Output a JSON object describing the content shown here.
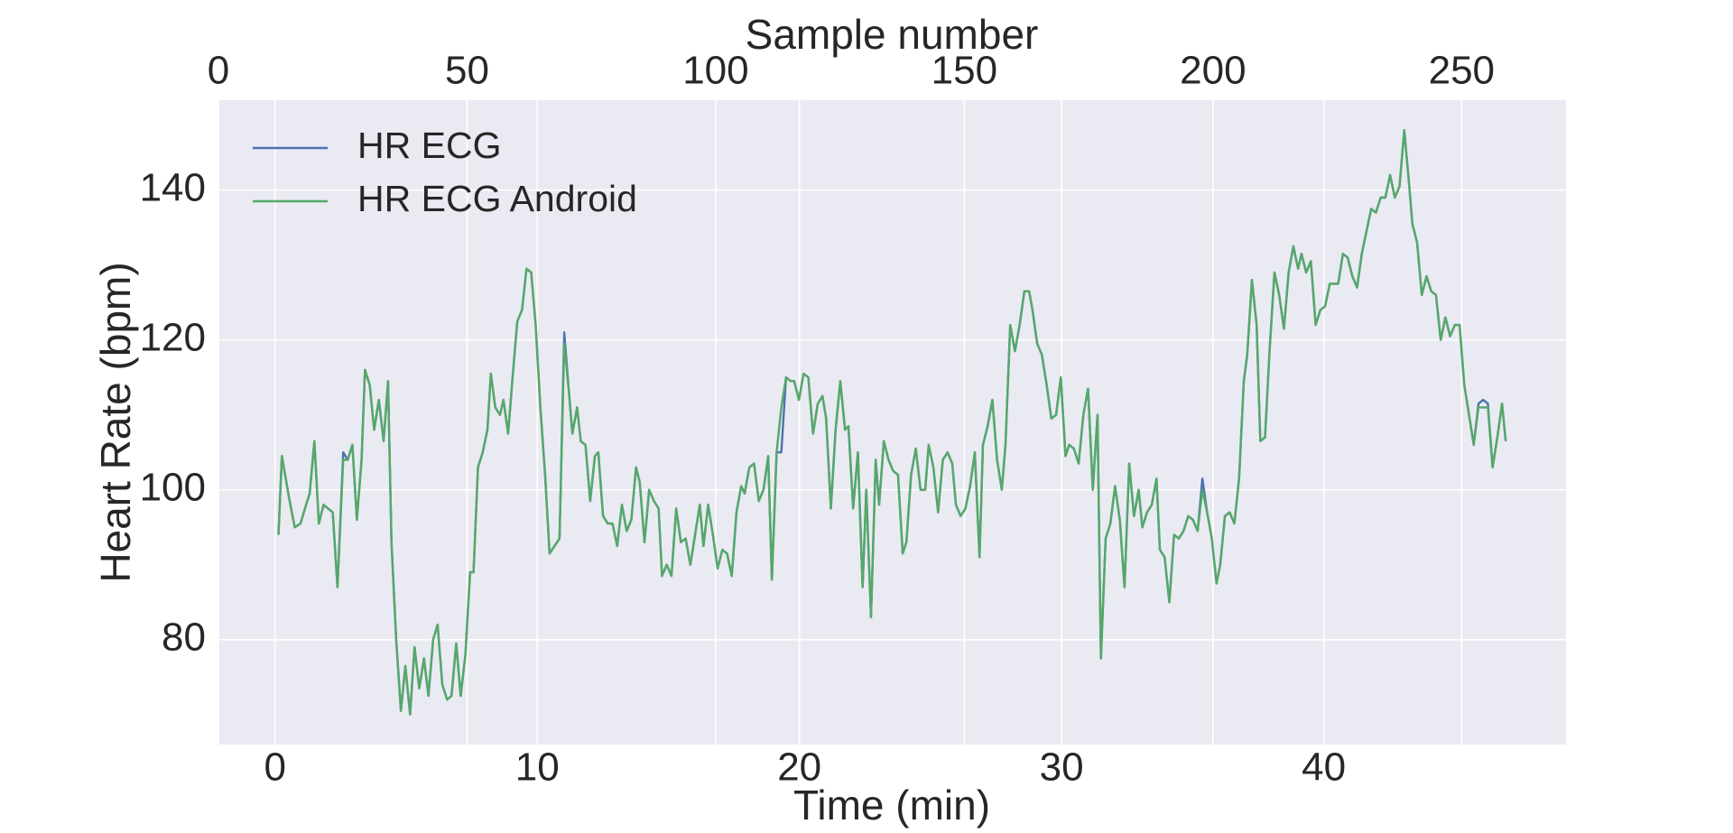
{
  "chart_data": {
    "type": "line",
    "xlabel": "Time (min)",
    "ylabel": "Heart Rate (bpm)",
    "x2label": "Sample number",
    "xlim": [
      -2.16,
      49.24
    ],
    "xticks": [
      0,
      10,
      20,
      30,
      40
    ],
    "x2lim": [
      0,
      271
    ],
    "x2ticks": [
      0,
      50,
      100,
      150,
      200,
      250
    ],
    "ylim": [
      66,
      152
    ],
    "yticks": [
      80,
      100,
      120,
      140
    ],
    "grid": true,
    "legend": "upper left",
    "x": [
      0.13,
      0.26,
      0.53,
      0.75,
      0.97,
      1.14,
      1.32,
      1.5,
      1.67,
      1.85,
      2.02,
      2.2,
      2.38,
      2.6,
      2.77,
      2.95,
      3.12,
      3.3,
      3.43,
      3.61,
      3.78,
      3.96,
      4.14,
      4.31,
      4.44,
      4.62,
      4.8,
      4.97,
      5.15,
      5.32,
      5.5,
      5.68,
      5.85,
      6.03,
      6.2,
      6.38,
      6.56,
      6.73,
      6.91,
      7.08,
      7.26,
      7.44,
      7.57,
      7.74,
      7.92,
      8.1,
      8.23,
      8.4,
      8.58,
      8.71,
      8.89,
      9.06,
      9.24,
      9.42,
      9.59,
      9.77,
      9.94,
      10.12,
      10.3,
      10.47,
      10.85,
      11.03,
      11.21,
      11.34,
      11.52,
      11.66,
      11.84,
      12.02,
      12.2,
      12.33,
      12.51,
      12.69,
      12.87,
      13.05,
      13.23,
      13.41,
      13.59,
      13.77,
      13.91,
      14.09,
      14.27,
      14.45,
      14.63,
      14.76,
      14.94,
      15.12,
      15.3,
      15.48,
      15.66,
      15.84,
      16.02,
      16.2,
      16.34,
      16.52,
      16.7,
      16.88,
      17.06,
      17.24,
      17.42,
      17.6,
      17.78,
      17.91,
      18.09,
      18.27,
      18.45,
      18.63,
      18.81,
      18.95,
      19.13,
      19.31,
      19.49,
      19.67,
      19.8,
      19.98,
      20.16,
      20.34,
      20.52,
      20.7,
      20.88,
      21.02,
      21.2,
      21.38,
      21.56,
      21.74,
      21.87,
      22.05,
      22.23,
      22.41,
      22.55,
      22.73,
      22.91,
      23.04,
      23.22,
      23.4,
      23.58,
      23.76,
      23.94,
      24.08,
      24.26,
      24.44,
      24.62,
      24.8,
      24.93,
      25.11,
      25.29,
      25.47,
      25.65,
      25.83,
      25.97,
      26.15,
      26.33,
      26.51,
      26.69,
      26.87,
      27.0,
      27.18,
      27.36,
      27.54,
      27.72,
      27.86,
      28.04,
      28.22,
      28.4,
      28.58,
      28.76,
      28.89,
      29.07,
      29.25,
      29.43,
      29.61,
      29.79,
      29.97,
      30.15,
      30.29,
      30.47,
      30.65,
      30.83,
      31.01,
      31.19,
      31.37,
      31.5,
      31.68,
      31.86,
      32.04,
      32.22,
      32.4,
      32.58,
      32.76,
      32.94,
      33.08,
      33.26,
      33.44,
      33.62,
      33.75,
      33.93,
      34.11,
      34.29,
      34.47,
      34.65,
      34.83,
      35.01,
      35.19,
      35.37,
      35.55,
      35.73,
      35.91,
      36.05,
      36.23,
      36.41,
      36.59,
      36.77,
      36.95,
      37.08,
      37.26,
      37.44,
      37.58,
      37.76,
      37.94,
      38.12,
      38.3,
      38.48,
      38.66,
      38.84,
      39.02,
      39.15,
      39.33,
      39.51,
      39.69,
      39.87,
      40.05,
      40.23,
      40.41,
      40.55,
      40.73,
      40.91,
      41.09,
      41.27,
      41.45,
      41.63,
      41.81,
      41.99,
      42.17,
      42.35,
      42.53,
      42.71,
      42.89,
      43.07,
      43.25,
      43.38,
      43.56,
      43.74,
      43.92,
      44.1,
      44.28,
      44.46,
      44.64,
      44.82,
      45.0,
      45.18,
      45.36,
      45.54,
      45.72,
      45.9,
      46.08,
      46.26,
      46.44,
      46.62,
      46.8,
      46.94
    ],
    "series": [
      {
        "name": "HR ECG",
        "color": "#4c72b0",
        "values": [
          94,
          104.5,
          99,
          95,
          95.5,
          97.5,
          99.5,
          106.5,
          95.5,
          98,
          97.5,
          97,
          87,
          105,
          104,
          106,
          96,
          104,
          116,
          114,
          108,
          112,
          106.5,
          114.5,
          93,
          80,
          70.5,
          76.5,
          70,
          79,
          73.5,
          77.5,
          72.5,
          80,
          82,
          74,
          72,
          72.5,
          79.5,
          72.5,
          78,
          89,
          89,
          103,
          105,
          108,
          115.5,
          111,
          110,
          112,
          107.5,
          115,
          122.5,
          124,
          129.5,
          129,
          122,
          111,
          102,
          91.5,
          93.5,
          121,
          113,
          107.5,
          111,
          106.5,
          106,
          98.5,
          104.5,
          105,
          96.5,
          95.5,
          95.5,
          92.5,
          98,
          94.5,
          96,
          103,
          101,
          93,
          100,
          98.5,
          97.5,
          88.5,
          90,
          88.5,
          97.5,
          93,
          93.5,
          90,
          94,
          98,
          92.5,
          98,
          94,
          89.5,
          92,
          91.5,
          88.5,
          97,
          100.5,
          99.5,
          103,
          103.5,
          98.5,
          100,
          104.5,
          88,
          105,
          105,
          115,
          114.5,
          114.5,
          112,
          115.5,
          115,
          107.5,
          111.5,
          112.5,
          109.5,
          97.5,
          108,
          114.5,
          108,
          108.5,
          97.5,
          105,
          87,
          100,
          83,
          104,
          98,
          106.5,
          104,
          102.5,
          102,
          91.5,
          93,
          102,
          105.5,
          100,
          100,
          106,
          103,
          97,
          104,
          105,
          103.5,
          98,
          96.5,
          97.5,
          100.5,
          105,
          91,
          106,
          108.5,
          112,
          104,
          100,
          106,
          122,
          118.5,
          122,
          126.5,
          126.5,
          124,
          119.5,
          118,
          114,
          109.5,
          110,
          115,
          104.5,
          106,
          105.5,
          103.5,
          110,
          113.5,
          100,
          110,
          77.5,
          93.5,
          95.5,
          100.5,
          96,
          87,
          103.5,
          96.5,
          100,
          95,
          97,
          98,
          101.5,
          92,
          91,
          85,
          94,
          93.5,
          94.5,
          96.5,
          96,
          94.5,
          101.5,
          97,
          93.5,
          87.5,
          90,
          96.5,
          97,
          95.5,
          101.5,
          114.5,
          118,
          128,
          122,
          106.5,
          107,
          119,
          129,
          126,
          121.5,
          129,
          132.5,
          129.5,
          131.5,
          129,
          130.5,
          122,
          124,
          124.5,
          127.5,
          127.5,
          127.5,
          131.5,
          131,
          128.5,
          127,
          131.5,
          134.5,
          137.5,
          137,
          139,
          139,
          142,
          139,
          140.5,
          148,
          141,
          135.5,
          133,
          126,
          128.5,
          126.5,
          126,
          120,
          123,
          120.5,
          122,
          122,
          114,
          110,
          106,
          111.5,
          112,
          111.5,
          103,
          107,
          111.5,
          106.5
        ]
      },
      {
        "name": "HR ECG Android",
        "color": "#55a868",
        "values": [
          94,
          104.5,
          99,
          95,
          95.5,
          97.5,
          99.5,
          106.5,
          95.5,
          98,
          97.5,
          97,
          87,
          104,
          104,
          106,
          96,
          104,
          116,
          114,
          108,
          112,
          106.5,
          114.5,
          93,
          80,
          70.5,
          76.5,
          70,
          79,
          73.5,
          77.5,
          72.5,
          80,
          82,
          74,
          72,
          72.5,
          79.5,
          72.5,
          78,
          89,
          89,
          103,
          105,
          108,
          115.5,
          111,
          110,
          112,
          107.5,
          115,
          122.5,
          124,
          129.5,
          129,
          122,
          111,
          102,
          91.5,
          93.5,
          119.5,
          113,
          107.5,
          111,
          106.5,
          106,
          98.5,
          104.5,
          105,
          96.5,
          95.5,
          95.5,
          92.5,
          98,
          94.5,
          96,
          103,
          101,
          93,
          100,
          98.5,
          97.5,
          88.5,
          90,
          88.5,
          97.5,
          93,
          93.5,
          90,
          94,
          98,
          92.5,
          98,
          94,
          89.5,
          92,
          91.5,
          88.5,
          97,
          100.5,
          99.5,
          103,
          103.5,
          98.5,
          100,
          104.5,
          88,
          105,
          111,
          115,
          114.5,
          114.5,
          112,
          115.5,
          115,
          107.5,
          111.5,
          112.5,
          109.5,
          97.5,
          108,
          114.5,
          108,
          108.5,
          97.5,
          105,
          87,
          100,
          83,
          104,
          98,
          106.5,
          104,
          102.5,
          102,
          91.5,
          93,
          102,
          105.5,
          100,
          100,
          106,
          103,
          97,
          104,
          105,
          103.5,
          98,
          96.5,
          97.5,
          100.5,
          105,
          91,
          106,
          108.5,
          112,
          104,
          100,
          106,
          122,
          118.5,
          122,
          126.5,
          126.5,
          124,
          119.5,
          118,
          114,
          109.5,
          110,
          115,
          104.5,
          106,
          105.5,
          103.5,
          110,
          113.5,
          100,
          110,
          77.5,
          93.5,
          95.5,
          100.5,
          96,
          87,
          103.5,
          96.5,
          100,
          95,
          97,
          98,
          101.5,
          92,
          91,
          85,
          94,
          93.5,
          94.5,
          96.5,
          96,
          94.5,
          100,
          97,
          93.5,
          87.5,
          90,
          96.5,
          97,
          95.5,
          101.5,
          114.5,
          118,
          128,
          122,
          106.5,
          107,
          119,
          129,
          126,
          121.5,
          129,
          132.5,
          129.5,
          131.5,
          129,
          130.5,
          122,
          124,
          124.5,
          127.5,
          127.5,
          127.5,
          131.5,
          131,
          128.5,
          127,
          131.5,
          134.5,
          137.5,
          137,
          139,
          139,
          142,
          139,
          140.5,
          148,
          141,
          135.5,
          133,
          126,
          128.5,
          126.5,
          126,
          120,
          123,
          120.5,
          122,
          122,
          114,
          110,
          106,
          111,
          111,
          111,
          103,
          107,
          111.5,
          106.5
        ]
      }
    ]
  }
}
